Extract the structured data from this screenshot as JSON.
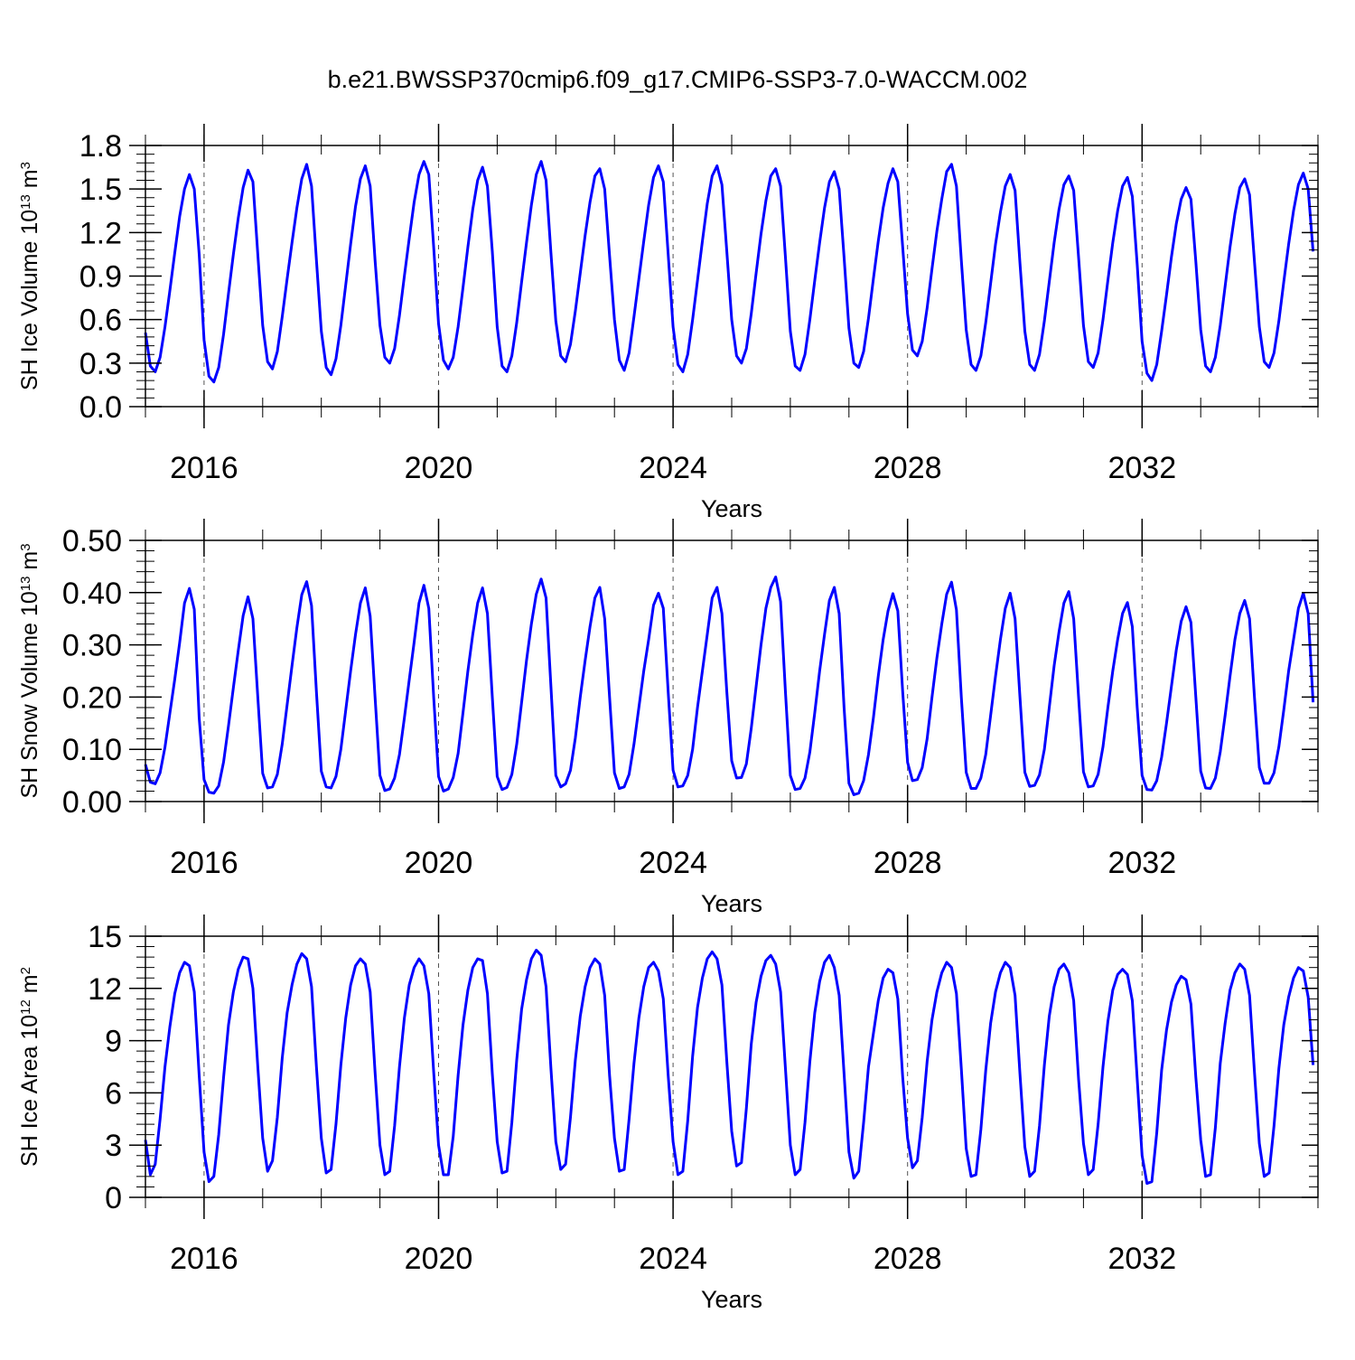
{
  "title": "b.e21.BWSSP370cmip6.f09_g17.CMIP6-SSP3-7.0-WACCM.002",
  "chart_data": [
    {
      "type": "line",
      "title": "b.e21.BWSSP370cmip6.f09_g17.CMIP6-SSP3-7.0-WACCM.002",
      "ylabel": {
        "main": "SH Ice Volume 10",
        "exp": "13",
        "unit": " m",
        "unit_exp": "3"
      },
      "xlabel": "Years",
      "xlim": [
        2015.0,
        2035.0
      ],
      "ylim": [
        0,
        1.8
      ],
      "x_ticks": [
        2016,
        2020,
        2024,
        2028,
        2032
      ],
      "x_tick_labels": [
        "2016",
        "2020",
        "2024",
        "2028",
        "2032"
      ],
      "y_ticks": [
        0,
        0.3,
        0.6,
        0.9,
        1.2,
        1.5,
        1.8
      ],
      "y_tick_labels": [
        "0.0",
        "0.3",
        "0.6",
        "0.9",
        "1.2",
        "1.5",
        "1.8"
      ],
      "y_minor_step": 0.06,
      "x_minor_step": 1,
      "grid": "vertical dashed at labeled years",
      "line_color": "#0000ff",
      "x_start": 2015.0,
      "x_step_months": 1,
      "values": [
        0.51,
        0.28,
        0.24,
        0.34,
        0.55,
        0.8,
        1.06,
        1.31,
        1.5,
        1.6,
        1.5,
        1.05,
        0.46,
        0.21,
        0.17,
        0.27,
        0.5,
        0.78,
        1.05,
        1.3,
        1.51,
        1.63,
        1.55,
        1.05,
        0.56,
        0.31,
        0.26,
        0.38,
        0.62,
        0.88,
        1.13,
        1.37,
        1.57,
        1.67,
        1.52,
        1.01,
        0.52,
        0.27,
        0.22,
        0.33,
        0.56,
        0.84,
        1.12,
        1.38,
        1.57,
        1.66,
        1.52,
        1.01,
        0.56,
        0.34,
        0.3,
        0.4,
        0.63,
        0.9,
        1.16,
        1.41,
        1.6,
        1.69,
        1.6,
        1.1,
        0.57,
        0.32,
        0.26,
        0.34,
        0.55,
        0.82,
        1.1,
        1.36,
        1.56,
        1.65,
        1.52,
        1.07,
        0.55,
        0.28,
        0.24,
        0.35,
        0.58,
        0.86,
        1.13,
        1.39,
        1.6,
        1.69,
        1.56,
        1.06,
        0.59,
        0.35,
        0.31,
        0.43,
        0.66,
        0.92,
        1.18,
        1.41,
        1.59,
        1.64,
        1.5,
        1.04,
        0.6,
        0.32,
        0.25,
        0.37,
        0.62,
        0.88,
        1.14,
        1.39,
        1.58,
        1.66,
        1.55,
        1.05,
        0.55,
        0.29,
        0.24,
        0.36,
        0.6,
        0.87,
        1.14,
        1.4,
        1.59,
        1.66,
        1.53,
        1.07,
        0.6,
        0.35,
        0.3,
        0.4,
        0.64,
        0.92,
        1.19,
        1.42,
        1.59,
        1.64,
        1.52,
        1.03,
        0.52,
        0.28,
        0.25,
        0.36,
        0.6,
        0.87,
        1.13,
        1.37,
        1.55,
        1.62,
        1.5,
        1.03,
        0.54,
        0.3,
        0.27,
        0.38,
        0.61,
        0.88,
        1.14,
        1.37,
        1.54,
        1.64,
        1.55,
        1.1,
        0.64,
        0.39,
        0.35,
        0.45,
        0.68,
        0.95,
        1.21,
        1.43,
        1.62,
        1.67,
        1.52,
        1.01,
        0.53,
        0.29,
        0.25,
        0.35,
        0.58,
        0.85,
        1.12,
        1.34,
        1.52,
        1.6,
        1.49,
        0.99,
        0.52,
        0.29,
        0.25,
        0.36,
        0.59,
        0.86,
        1.13,
        1.36,
        1.53,
        1.59,
        1.49,
        1.03,
        0.56,
        0.31,
        0.27,
        0.37,
        0.6,
        0.87,
        1.13,
        1.35,
        1.52,
        1.58,
        1.45,
        0.98,
        0.45,
        0.23,
        0.18,
        0.29,
        0.52,
        0.77,
        1.03,
        1.26,
        1.43,
        1.51,
        1.43,
        1.0,
        0.53,
        0.28,
        0.24,
        0.34,
        0.56,
        0.83,
        1.1,
        1.33,
        1.51,
        1.57,
        1.46,
        1.0,
        0.55,
        0.31,
        0.27,
        0.37,
        0.59,
        0.86,
        1.12,
        1.35,
        1.53,
        1.61,
        1.5,
        1.07
      ]
    },
    {
      "type": "line",
      "ylabel": {
        "main": "SH Snow Volume 10",
        "exp": "13",
        "unit": " m",
        "unit_exp": "3"
      },
      "xlabel": "Years",
      "xlim": [
        2015.0,
        2035.0
      ],
      "ylim": [
        0,
        0.5
      ],
      "x_ticks": [
        2016,
        2020,
        2024,
        2028,
        2032
      ],
      "x_tick_labels": [
        "2016",
        "2020",
        "2024",
        "2028",
        "2032"
      ],
      "y_ticks": [
        0,
        0.1,
        0.2,
        0.3,
        0.4,
        0.5
      ],
      "y_tick_labels": [
        "0.00",
        "0.10",
        "0.20",
        "0.30",
        "0.40",
        "0.50"
      ],
      "y_minor_step": 0.02,
      "x_minor_step": 1,
      "grid": "vertical dashed at labeled years",
      "line_color": "#0000ff",
      "x_start": 2015.0,
      "x_step_months": 1,
      "values": [
        0.071,
        0.037,
        0.034,
        0.055,
        0.104,
        0.169,
        0.234,
        0.304,
        0.38,
        0.408,
        0.368,
        0.16,
        0.042,
        0.018,
        0.016,
        0.03,
        0.076,
        0.145,
        0.218,
        0.289,
        0.356,
        0.392,
        0.35,
        0.2,
        0.054,
        0.026,
        0.028,
        0.052,
        0.11,
        0.185,
        0.26,
        0.333,
        0.396,
        0.421,
        0.375,
        0.21,
        0.058,
        0.028,
        0.026,
        0.048,
        0.1,
        0.175,
        0.25,
        0.32,
        0.38,
        0.409,
        0.355,
        0.2,
        0.05,
        0.021,
        0.024,
        0.045,
        0.09,
        0.16,
        0.233,
        0.305,
        0.38,
        0.414,
        0.37,
        0.2,
        0.048,
        0.02,
        0.024,
        0.046,
        0.092,
        0.17,
        0.25,
        0.32,
        0.38,
        0.409,
        0.36,
        0.2,
        0.048,
        0.023,
        0.027,
        0.052,
        0.11,
        0.19,
        0.27,
        0.34,
        0.397,
        0.426,
        0.39,
        0.22,
        0.05,
        0.028,
        0.034,
        0.06,
        0.122,
        0.2,
        0.27,
        0.335,
        0.39,
        0.41,
        0.35,
        0.2,
        0.055,
        0.025,
        0.028,
        0.052,
        0.11,
        0.18,
        0.25,
        0.31,
        0.376,
        0.399,
        0.37,
        0.21,
        0.06,
        0.028,
        0.03,
        0.05,
        0.1,
        0.18,
        0.25,
        0.32,
        0.39,
        0.41,
        0.36,
        0.21,
        0.078,
        0.045,
        0.046,
        0.072,
        0.14,
        0.22,
        0.3,
        0.37,
        0.41,
        0.43,
        0.383,
        0.21,
        0.05,
        0.023,
        0.025,
        0.045,
        0.095,
        0.17,
        0.25,
        0.32,
        0.385,
        0.41,
        0.36,
        0.18,
        0.035,
        0.013,
        0.016,
        0.04,
        0.09,
        0.16,
        0.24,
        0.31,
        0.365,
        0.398,
        0.365,
        0.21,
        0.075,
        0.04,
        0.042,
        0.065,
        0.12,
        0.2,
        0.275,
        0.34,
        0.397,
        0.42,
        0.367,
        0.2,
        0.056,
        0.025,
        0.025,
        0.045,
        0.09,
        0.165,
        0.24,
        0.31,
        0.37,
        0.399,
        0.35,
        0.2,
        0.056,
        0.029,
        0.031,
        0.051,
        0.1,
        0.18,
        0.26,
        0.325,
        0.38,
        0.402,
        0.35,
        0.2,
        0.057,
        0.028,
        0.03,
        0.052,
        0.105,
        0.18,
        0.25,
        0.31,
        0.36,
        0.381,
        0.335,
        0.18,
        0.05,
        0.023,
        0.022,
        0.04,
        0.085,
        0.15,
        0.22,
        0.29,
        0.345,
        0.373,
        0.343,
        0.2,
        0.058,
        0.026,
        0.025,
        0.045,
        0.095,
        0.165,
        0.24,
        0.31,
        0.36,
        0.385,
        0.35,
        0.2,
        0.065,
        0.035,
        0.035,
        0.055,
        0.105,
        0.175,
        0.25,
        0.31,
        0.37,
        0.399,
        0.36,
        0.19
      ]
    },
    {
      "type": "line",
      "ylabel": {
        "main": "SH Ice Area 10",
        "exp": "12",
        "unit": " m",
        "unit_exp": "2"
      },
      "xlabel": "Years",
      "xlim": [
        2015.0,
        2035.0
      ],
      "ylim": [
        0,
        15
      ],
      "x_ticks": [
        2016,
        2020,
        2024,
        2028,
        2032
      ],
      "x_tick_labels": [
        "2016",
        "2020",
        "2024",
        "2028",
        "2032"
      ],
      "y_ticks": [
        0,
        3,
        6,
        9,
        12,
        15
      ],
      "y_tick_labels": [
        "0",
        "3",
        "6",
        "9",
        "12",
        "15"
      ],
      "y_minor_step": 0.6,
      "x_minor_step": 1,
      "grid": "vertical dashed at labeled years",
      "line_color": "#0000ff",
      "x_start": 2015.0,
      "x_step_months": 1,
      "values": [
        3.3,
        1.3,
        1.9,
        4.5,
        7.5,
        9.8,
        11.7,
        12.9,
        13.5,
        13.3,
        11.8,
        7.0,
        2.6,
        0.9,
        1.2,
        3.6,
        6.9,
        9.9,
        11.8,
        13.1,
        13.8,
        13.7,
        12.0,
        7.5,
        3.4,
        1.5,
        2.1,
        4.6,
        8.0,
        10.6,
        12.2,
        13.4,
        14.0,
        13.7,
        12.1,
        7.5,
        3.4,
        1.4,
        1.6,
        4.2,
        7.6,
        10.3,
        12.2,
        13.3,
        13.7,
        13.4,
        11.8,
        7.2,
        3.0,
        1.3,
        1.5,
        4.1,
        7.5,
        10.3,
        12.2,
        13.2,
        13.7,
        13.3,
        11.7,
        7.2,
        3.0,
        1.3,
        1.3,
        3.5,
        7.0,
        9.9,
        11.9,
        13.2,
        13.7,
        13.6,
        11.7,
        7.1,
        3.2,
        1.4,
        1.5,
        4.3,
        7.9,
        10.8,
        12.5,
        13.7,
        14.2,
        13.9,
        12.1,
        7.4,
        3.2,
        1.6,
        1.9,
        4.6,
        7.9,
        10.4,
        12.1,
        13.2,
        13.7,
        13.4,
        11.6,
        7.0,
        3.4,
        1.5,
        1.6,
        4.5,
        7.7,
        10.3,
        12.1,
        13.2,
        13.5,
        13.0,
        11.4,
        7.0,
        3.2,
        1.3,
        1.5,
        4.4,
        8.1,
        10.9,
        12.6,
        13.7,
        14.1,
        13.7,
        12.2,
        7.8,
        3.8,
        1.8,
        2.0,
        5.1,
        8.8,
        11.2,
        12.7,
        13.6,
        13.9,
        13.4,
        11.8,
        7.4,
        3.0,
        1.3,
        1.6,
        4.3,
        7.8,
        10.6,
        12.4,
        13.5,
        13.9,
        13.2,
        11.6,
        7.1,
        2.6,
        1.1,
        1.5,
        4.3,
        7.5,
        9.4,
        11.3,
        12.6,
        13.1,
        12.9,
        11.4,
        6.9,
        3.4,
        1.7,
        2.1,
        4.6,
        7.8,
        10.2,
        11.8,
        12.9,
        13.5,
        13.2,
        11.7,
        7.4,
        2.8,
        1.2,
        1.3,
        3.9,
        7.3,
        10.0,
        11.8,
        12.9,
        13.5,
        13.2,
        11.6,
        7.1,
        2.9,
        1.2,
        1.5,
        4.1,
        7.6,
        10.4,
        12.1,
        13.1,
        13.4,
        12.9,
        11.3,
        6.8,
        3.1,
        1.3,
        1.6,
        4.2,
        7.5,
        10.1,
        11.9,
        12.8,
        13.1,
        12.8,
        11.3,
        6.8,
        2.4,
        0.8,
        0.9,
        3.7,
        7.3,
        9.6,
        11.2,
        12.2,
        12.7,
        12.5,
        11.1,
        6.9,
        3.3,
        1.2,
        1.3,
        4.0,
        7.7,
        10.0,
        11.9,
        12.9,
        13.4,
        13.1,
        11.6,
        7.2,
        3.1,
        1.2,
        1.4,
        4.1,
        7.4,
        9.9,
        11.5,
        12.6,
        13.2,
        13.0,
        11.5,
        7.6
      ]
    }
  ]
}
